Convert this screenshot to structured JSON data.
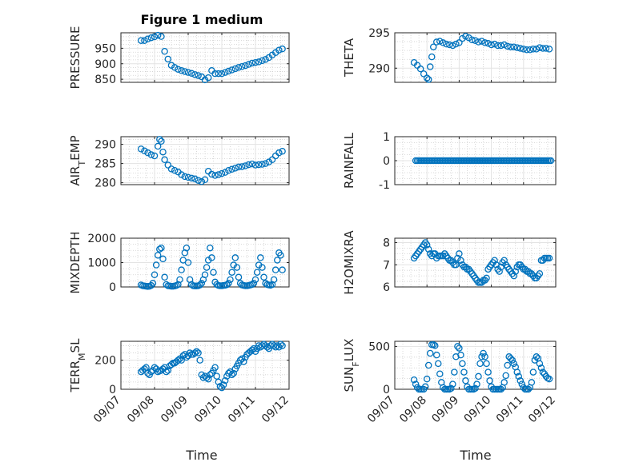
{
  "figure": {
    "title": "Figure 1 medium",
    "xlabel": "Time"
  },
  "chart_data": [
    {
      "type": "scatter",
      "ylabel": "PRESSURE",
      "ylim": [
        840,
        1000
      ],
      "yticks": [
        850,
        900,
        950
      ],
      "xlim": [
        0,
        5
      ],
      "xticklabels": [
        "09/07",
        "09/08",
        "09/09",
        "09/10",
        "09/11",
        "09/12"
      ],
      "x": [
        0.6,
        0.7,
        0.8,
        0.9,
        1.0,
        1.1,
        1.2,
        1.3,
        1.4,
        1.5,
        1.6,
        1.7,
        1.8,
        1.9,
        2.0,
        2.1,
        2.2,
        2.3,
        2.4,
        2.5,
        2.6,
        2.7,
        2.8,
        2.9,
        3.0,
        3.1,
        3.2,
        3.3,
        3.4,
        3.5,
        3.6,
        3.7,
        3.8,
        3.9,
        4.0,
        4.1,
        4.2,
        4.3,
        4.4,
        4.5,
        4.6,
        4.7,
        4.8
      ],
      "y": [
        975,
        975,
        980,
        984,
        987,
        992,
        988,
        940,
        915,
        895,
        888,
        882,
        878,
        875,
        872,
        869,
        865,
        862,
        858,
        848,
        855,
        878,
        868,
        868,
        868,
        872,
        876,
        880,
        884,
        888,
        891,
        894,
        898,
        902,
        904,
        906,
        910,
        914,
        920,
        928,
        936,
        944,
        948
      ],
      "marker": "circle",
      "color": "#0072BD"
    },
    {
      "type": "scatter",
      "ylabel": "THETA",
      "ylim": [
        288,
        295
      ],
      "yticks": [
        290,
        295
      ],
      "xlim": [
        0,
        5
      ],
      "xticklabels": [
        "09/07",
        "09/08",
        "09/09",
        "09/10",
        "09/11",
        "09/12"
      ],
      "x": [
        0.6,
        0.7,
        0.8,
        0.9,
        1.0,
        1.05,
        1.1,
        1.15,
        1.2,
        1.3,
        1.4,
        1.5,
        1.6,
        1.7,
        1.8,
        1.9,
        2.0,
        2.1,
        2.2,
        2.3,
        2.4,
        2.5,
        2.6,
        2.7,
        2.8,
        2.9,
        3.0,
        3.1,
        3.2,
        3.3,
        3.4,
        3.5,
        3.6,
        3.7,
        3.8,
        3.9,
        4.0,
        4.1,
        4.2,
        4.3,
        4.4,
        4.5,
        4.6,
        4.7,
        4.8
      ],
      "y": [
        290.8,
        290.4,
        289.9,
        289.2,
        288.6,
        288.4,
        290.2,
        291.6,
        293.0,
        293.7,
        293.8,
        293.6,
        293.4,
        293.3,
        293.2,
        293.4,
        293.6,
        294.2,
        294.5,
        294.3,
        294.0,
        293.9,
        293.7,
        293.8,
        293.6,
        293.5,
        293.3,
        293.4,
        293.2,
        293.2,
        293.3,
        293.1,
        293.0,
        293.0,
        292.9,
        292.8,
        292.7,
        292.6,
        292.6,
        292.7,
        292.7,
        292.9,
        292.8,
        292.8,
        292.7
      ],
      "marker": "circle",
      "color": "#0072BD"
    },
    {
      "type": "scatter",
      "ylabel": "AIR_TEMP",
      "ylim": [
        279.5,
        292
      ],
      "yticks": [
        280,
        285,
        290
      ],
      "xlim": [
        0,
        5
      ],
      "xticklabels": [
        "09/07",
        "09/08",
        "09/09",
        "09/10",
        "09/11",
        "09/12"
      ],
      "x": [
        0.6,
        0.7,
        0.8,
        0.9,
        1.0,
        1.1,
        1.15,
        1.2,
        1.25,
        1.3,
        1.4,
        1.5,
        1.6,
        1.7,
        1.8,
        1.9,
        2.0,
        2.1,
        2.2,
        2.3,
        2.4,
        2.5,
        2.6,
        2.7,
        2.8,
        2.9,
        3.0,
        3.1,
        3.2,
        3.3,
        3.4,
        3.5,
        3.6,
        3.7,
        3.8,
        3.9,
        4.0,
        4.1,
        4.2,
        4.3,
        4.4,
        4.5,
        4.6,
        4.7,
        4.8
      ],
      "y": [
        288.8,
        288.3,
        287.8,
        287.3,
        287.0,
        289.5,
        291.3,
        290.8,
        288.0,
        286.0,
        284.6,
        283.6,
        283.2,
        282.8,
        282.1,
        281.6,
        281.4,
        281.2,
        281.0,
        280.6,
        280.3,
        280.8,
        283.0,
        282.2,
        281.9,
        282.1,
        282.4,
        282.7,
        283.2,
        283.5,
        283.8,
        284.1,
        284.2,
        284.4,
        284.7,
        284.9,
        284.6,
        284.7,
        284.8,
        285.0,
        285.4,
        286.0,
        287.0,
        287.8,
        288.2
      ],
      "marker": "circle",
      "color": "#0072BD"
    },
    {
      "type": "scatter",
      "ylabel": "RAINFALL",
      "ylim": [
        -1,
        1
      ],
      "yticks": [
        -1,
        0,
        1
      ],
      "xlim": [
        0,
        5
      ],
      "xticklabels": [
        "09/07",
        "09/08",
        "09/09",
        "09/10",
        "09/11",
        "09/12"
      ],
      "x": [
        0.65,
        0.7,
        0.75,
        0.8,
        0.85,
        0.9,
        0.95,
        1.0,
        1.05,
        1.1,
        1.15,
        1.2,
        1.25,
        1.3,
        1.35,
        1.4,
        1.45,
        1.5,
        1.55,
        1.6,
        1.65,
        1.7,
        1.75,
        1.8,
        1.85,
        1.9,
        1.95,
        2.0,
        2.05,
        2.1,
        2.15,
        2.2,
        2.25,
        2.3,
        2.35,
        2.4,
        2.45,
        2.5,
        2.55,
        2.6,
        2.65,
        2.7,
        2.75,
        2.8,
        2.85,
        2.9,
        2.95,
        3.0,
        3.05,
        3.1,
        3.15,
        3.2,
        3.25,
        3.3,
        3.35,
        3.4,
        3.45,
        3.5,
        3.55,
        3.6,
        3.65,
        3.7,
        3.75,
        3.8,
        3.85,
        3.9,
        3.95,
        4.0,
        4.05,
        4.1,
        4.15,
        4.2,
        4.25,
        4.3,
        4.35,
        4.4,
        4.45,
        4.5,
        4.55,
        4.6,
        4.65,
        4.7,
        4.75,
        4.8,
        4.85
      ],
      "y": [
        0,
        0,
        0,
        0,
        0,
        0,
        0,
        0,
        0,
        0,
        0,
        0,
        0,
        0,
        0,
        0,
        0,
        0,
        0,
        0,
        0,
        0,
        0,
        0,
        0,
        0,
        0,
        0,
        0,
        0,
        0,
        0,
        0,
        0,
        0,
        0,
        0,
        0,
        0,
        0,
        0,
        0,
        0,
        0,
        0,
        0,
        0,
        0,
        0,
        0,
        0,
        0,
        0,
        0,
        0,
        0,
        0,
        0,
        0,
        0,
        0,
        0,
        0,
        0,
        0,
        0,
        0,
        0,
        0,
        0,
        0,
        0,
        0,
        0,
        0,
        0,
        0,
        0,
        0,
        0,
        0,
        0,
        0,
        0,
        0
      ],
      "marker": "circle",
      "color": "#0072BD"
    },
    {
      "type": "scatter",
      "ylabel": "MIXDEPTH",
      "ylim": [
        0,
        2000
      ],
      "yticks": [
        0,
        1000,
        2000
      ],
      "xlim": [
        0,
        5
      ],
      "xticklabels": [
        "09/07",
        "09/08",
        "09/09",
        "09/10",
        "09/11",
        "09/12"
      ],
      "x": [
        0.6,
        0.65,
        0.7,
        0.75,
        0.8,
        0.85,
        0.9,
        0.95,
        1.0,
        1.05,
        1.1,
        1.15,
        1.2,
        1.25,
        1.3,
        1.35,
        1.4,
        1.45,
        1.5,
        1.55,
        1.6,
        1.65,
        1.7,
        1.75,
        1.8,
        1.85,
        1.9,
        1.95,
        2.0,
        2.05,
        2.1,
        2.15,
        2.2,
        2.25,
        2.3,
        2.35,
        2.4,
        2.45,
        2.5,
        2.55,
        2.6,
        2.65,
        2.7,
        2.75,
        2.8,
        2.85,
        2.9,
        2.95,
        3.0,
        3.05,
        3.1,
        3.15,
        3.2,
        3.25,
        3.3,
        3.35,
        3.4,
        3.45,
        3.5,
        3.55,
        3.6,
        3.65,
        3.7,
        3.75,
        3.8,
        3.85,
        3.9,
        3.95,
        4.0,
        4.05,
        4.1,
        4.15,
        4.2,
        4.25,
        4.3,
        4.35,
        4.4,
        4.45,
        4.5,
        4.55,
        4.6,
        4.65,
        4.7,
        4.75,
        4.8
      ],
      "y": [
        80,
        50,
        40,
        30,
        20,
        30,
        60,
        150,
        500,
        900,
        1300,
        1550,
        1600,
        1150,
        400,
        100,
        50,
        40,
        30,
        30,
        40,
        60,
        100,
        300,
        700,
        1100,
        1400,
        1600,
        1000,
        300,
        100,
        50,
        40,
        40,
        50,
        80,
        150,
        300,
        500,
        800,
        1100,
        1600,
        1200,
        600,
        200,
        100,
        60,
        50,
        50,
        60,
        70,
        90,
        150,
        300,
        600,
        900,
        1200,
        800,
        400,
        150,
        80,
        60,
        50,
        50,
        60,
        80,
        100,
        150,
        300,
        600,
        900,
        1200,
        800,
        400,
        150,
        100,
        80,
        70,
        100,
        300,
        700,
        1100,
        1400,
        1300,
        700
      ],
      "marker": "circle",
      "color": "#0072BD"
    },
    {
      "type": "scatter",
      "ylabel": "H2OMIXRA",
      "ylim": [
        6,
        8.2
      ],
      "yticks": [
        6,
        7,
        8
      ],
      "xlim": [
        0,
        5
      ],
      "xticklabels": [
        "09/07",
        "09/08",
        "09/09",
        "09/10",
        "09/11",
        "09/12"
      ],
      "x": [
        0.6,
        0.65,
        0.7,
        0.75,
        0.8,
        0.85,
        0.9,
        0.95,
        1.0,
        1.05,
        1.1,
        1.15,
        1.2,
        1.25,
        1.3,
        1.35,
        1.4,
        1.45,
        1.5,
        1.55,
        1.6,
        1.65,
        1.7,
        1.75,
        1.8,
        1.85,
        1.9,
        1.95,
        2.0,
        2.05,
        2.1,
        2.15,
        2.2,
        2.25,
        2.3,
        2.35,
        2.4,
        2.45,
        2.5,
        2.55,
        2.6,
        2.65,
        2.7,
        2.75,
        2.8,
        2.85,
        2.9,
        2.95,
        3.0,
        3.05,
        3.1,
        3.15,
        3.2,
        3.25,
        3.3,
        3.35,
        3.4,
        3.45,
        3.5,
        3.55,
        3.6,
        3.65,
        3.7,
        3.75,
        3.8,
        3.85,
        3.9,
        3.95,
        4.0,
        4.05,
        4.1,
        4.15,
        4.2,
        4.25,
        4.3,
        4.35,
        4.4,
        4.45,
        4.5,
        4.55,
        4.6,
        4.65,
        4.7,
        4.75,
        4.8
      ],
      "y": [
        7.3,
        7.4,
        7.5,
        7.6,
        7.7,
        7.8,
        7.9,
        8.0,
        7.9,
        7.7,
        7.5,
        7.4,
        7.5,
        7.5,
        7.3,
        7.4,
        7.4,
        7.4,
        7.4,
        7.5,
        7.4,
        7.3,
        7.2,
        7.2,
        7.1,
        7.0,
        7.0,
        7.3,
        7.5,
        7.2,
        7.0,
        6.9,
        6.9,
        6.8,
        6.8,
        6.7,
        6.6,
        6.5,
        6.4,
        6.3,
        6.2,
        6.2,
        6.2,
        6.3,
        6.3,
        6.4,
        6.8,
        6.9,
        7.0,
        7.1,
        7.2,
        7.0,
        6.8,
        6.7,
        6.9,
        7.1,
        7.2,
        7.0,
        6.9,
        6.8,
        6.7,
        6.6,
        6.5,
        6.7,
        6.9,
        7.0,
        7.0,
        6.9,
        6.8,
        6.8,
        6.7,
        6.7,
        6.6,
        6.6,
        6.5,
        6.4,
        6.4,
        6.5,
        6.6,
        7.2,
        7.2,
        7.3,
        7.3,
        7.3,
        7.3
      ],
      "marker": "circle",
      "color": "#0072BD"
    },
    {
      "type": "scatter",
      "ylabel": "TERR_MSL",
      "ylim": [
        0,
        330
      ],
      "yticks": [
        0,
        200
      ],
      "xlim": [
        0,
        5
      ],
      "xticklabels": [
        "09/07",
        "09/08",
        "09/09",
        "09/10",
        "09/11",
        "09/12"
      ],
      "x": [
        0.6,
        0.65,
        0.7,
        0.75,
        0.8,
        0.85,
        0.9,
        0.95,
        1.0,
        1.05,
        1.1,
        1.15,
        1.2,
        1.25,
        1.3,
        1.35,
        1.4,
        1.45,
        1.5,
        1.55,
        1.6,
        1.65,
        1.7,
        1.75,
        1.8,
        1.85,
        1.9,
        1.95,
        2.0,
        2.05,
        2.1,
        2.15,
        2.2,
        2.25,
        2.3,
        2.35,
        2.4,
        2.45,
        2.5,
        2.55,
        2.6,
        2.65,
        2.7,
        2.75,
        2.8,
        2.85,
        2.9,
        2.95,
        3.0,
        3.05,
        3.1,
        3.15,
        3.2,
        3.25,
        3.3,
        3.35,
        3.4,
        3.45,
        3.5,
        3.55,
        3.6,
        3.65,
        3.7,
        3.75,
        3.8,
        3.85,
        3.9,
        3.95,
        4.0,
        4.05,
        4.1,
        4.15,
        4.2,
        4.25,
        4.3,
        4.35,
        4.4,
        4.45,
        4.5,
        4.55,
        4.6,
        4.65,
        4.7,
        4.75,
        4.8
      ],
      "y": [
        120,
        130,
        140,
        150,
        110,
        100,
        120,
        130,
        150,
        140,
        120,
        125,
        130,
        140,
        150,
        120,
        130,
        160,
        170,
        180,
        180,
        190,
        200,
        210,
        200,
        230,
        240,
        220,
        230,
        250,
        240,
        240,
        250,
        260,
        250,
        200,
        100,
        80,
        90,
        80,
        70,
        100,
        110,
        130,
        150,
        90,
        50,
        20,
        10,
        30,
        60,
        90,
        110,
        120,
        100,
        110,
        140,
        160,
        180,
        200,
        210,
        190,
        220,
        240,
        250,
        260,
        270,
        280,
        260,
        280,
        300,
        290,
        300,
        310,
        300,
        290,
        280,
        300,
        310,
        300,
        290,
        300,
        290,
        310,
        300
      ],
      "marker": "circle",
      "color": "#0072BD"
    },
    {
      "type": "scatter",
      "ylabel": "SUN_FLUX",
      "ylim": [
        0,
        560
      ],
      "yticks": [
        0,
        500
      ],
      "xlim": [
        0,
        5
      ],
      "xticklabels": [
        "09/07",
        "09/08",
        "09/09",
        "09/10",
        "09/11",
        "09/12"
      ],
      "x": [
        0.6,
        0.65,
        0.7,
        0.75,
        0.8,
        0.85,
        0.9,
        0.95,
        1.0,
        1.05,
        1.1,
        1.15,
        1.2,
        1.25,
        1.3,
        1.35,
        1.4,
        1.45,
        1.5,
        1.55,
        1.6,
        1.65,
        1.7,
        1.75,
        1.8,
        1.85,
        1.9,
        1.95,
        2.0,
        2.05,
        2.1,
        2.15,
        2.2,
        2.25,
        2.3,
        2.35,
        2.4,
        2.45,
        2.5,
        2.55,
        2.6,
        2.65,
        2.7,
        2.75,
        2.8,
        2.85,
        2.9,
        2.95,
        3.0,
        3.05,
        3.1,
        3.15,
        3.2,
        3.25,
        3.3,
        3.35,
        3.4,
        3.45,
        3.5,
        3.55,
        3.6,
        3.65,
        3.7,
        3.75,
        3.8,
        3.85,
        3.9,
        3.95,
        4.0,
        4.05,
        4.1,
        4.15,
        4.2,
        4.25,
        4.3,
        4.35,
        4.4,
        4.45,
        4.5,
        4.55,
        4.6,
        4.65,
        4.7,
        4.75,
        4.8
      ],
      "y": [
        110,
        60,
        20,
        0,
        0,
        0,
        0,
        30,
        120,
        280,
        420,
        520,
        520,
        510,
        400,
        300,
        180,
        80,
        20,
        0,
        0,
        0,
        0,
        10,
        60,
        200,
        380,
        500,
        480,
        400,
        300,
        200,
        100,
        30,
        0,
        0,
        0,
        0,
        10,
        60,
        150,
        300,
        380,
        420,
        380,
        300,
        200,
        100,
        30,
        0,
        0,
        0,
        0,
        0,
        0,
        20,
        80,
        160,
        280,
        380,
        360,
        340,
        300,
        260,
        200,
        150,
        100,
        60,
        20,
        0,
        0,
        0,
        20,
        80,
        200,
        340,
        380,
        360,
        300,
        250,
        200,
        180,
        150,
        130,
        120
      ],
      "marker": "circle",
      "color": "#0072BD"
    }
  ]
}
